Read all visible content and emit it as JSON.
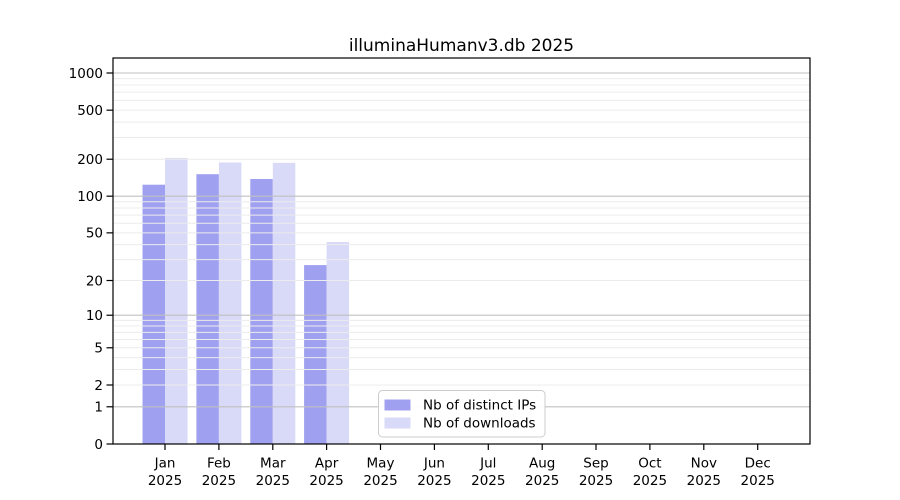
{
  "figure": {
    "title": "illuminaHumanv3.db 2025"
  },
  "chart_data": {
    "type": "bar",
    "title": "illuminaHumanv3.db 2025",
    "categories": [
      "Jan",
      "Feb",
      "Mar",
      "Apr",
      "May",
      "Jun",
      "Jul",
      "Aug",
      "Sep",
      "Oct",
      "Nov",
      "Dec"
    ],
    "year_label": "2025",
    "series": [
      {
        "name": "Nb of distinct IPs",
        "color": "#a0a0f0",
        "values": [
          124,
          151,
          138,
          27,
          null,
          null,
          null,
          null,
          null,
          null,
          null,
          null
        ]
      },
      {
        "name": "Nb of downloads",
        "color": "#d9d9f8",
        "values": [
          205,
          188,
          187,
          42,
          null,
          null,
          null,
          null,
          null,
          null,
          null,
          null
        ]
      }
    ],
    "y_axis": {
      "scale": "log1p",
      "ticks": [
        0,
        1,
        2,
        5,
        10,
        20,
        50,
        100,
        200,
        500,
        1000
      ],
      "major_grid": [
        1,
        10,
        100,
        1000
      ],
      "minor_grid": [
        2,
        3,
        4,
        5,
        6,
        7,
        8,
        9,
        20,
        30,
        40,
        50,
        60,
        70,
        80,
        90,
        200,
        300,
        400,
        500,
        600,
        700,
        800,
        900
      ],
      "ylim": [
        0,
        1320
      ]
    },
    "grid": "horizontal",
    "legend_position": "lower-center-inside"
  },
  "style": {
    "bar_color_ips": "#a0a0f0",
    "bar_color_downloads": "#d9d9f8",
    "major_grid_color": "#c0c0c0",
    "minor_grid_color": "#ececec",
    "axis_color": "#000000",
    "legend_border_color": "#cccccc",
    "background_color": "#ffffff"
  }
}
